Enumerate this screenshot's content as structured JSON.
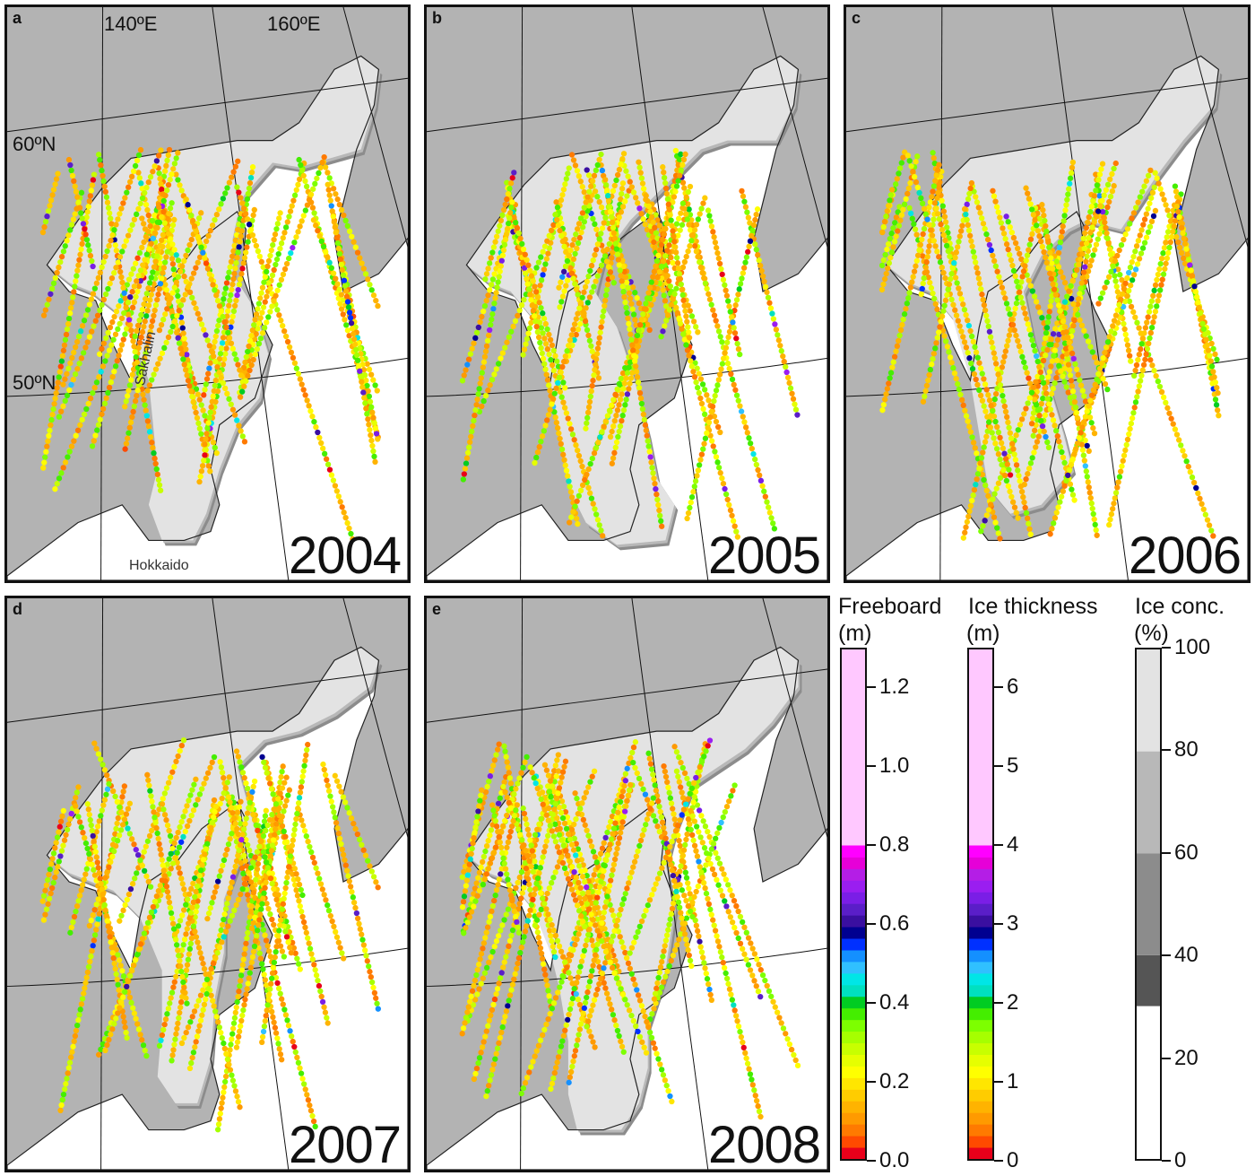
{
  "panels": [
    {
      "id": "a",
      "label": "a",
      "year": "2004"
    },
    {
      "id": "b",
      "label": "b",
      "year": "2005"
    },
    {
      "id": "c",
      "label": "c",
      "year": "2006"
    },
    {
      "id": "d",
      "label": "d",
      "year": "2007"
    },
    {
      "id": "e",
      "label": "e",
      "year": "2008"
    }
  ],
  "axis_labels": {
    "lon_140": "140ºE",
    "lon_160": "160ºE",
    "lat_60": "60ºN",
    "lat_50": "50ºN"
  },
  "places": {
    "sakhalin": "Sakhalin",
    "hokkaido": "Hokkaido"
  },
  "legend": {
    "freeboard": {
      "title": "Freeboard",
      "unit": "(m)",
      "ticks": [
        "0.0",
        "0.2",
        "0.4",
        "0.6",
        "0.8",
        "1.0",
        "1.2"
      ],
      "range": [
        0,
        1.3
      ]
    },
    "thickness": {
      "title": "Ice thickness",
      "unit": "(m)",
      "ticks": [
        "0",
        "1",
        "2",
        "3",
        "4",
        "5",
        "6"
      ],
      "range": [
        0,
        6.5
      ]
    },
    "concentration": {
      "title": "Ice conc.",
      "unit": "(%)",
      "ticks": [
        "0",
        "20",
        "40",
        "60",
        "80",
        "100"
      ],
      "range": [
        0,
        100
      ]
    }
  },
  "colors": {
    "land": "#b3b3b3",
    "ice_high": "#e3e3e3",
    "ice_mid": "#b8b8b8",
    "ice_low": "#8c8c8c",
    "ice_vlow": "#555555",
    "open_water": "#ffffff",
    "thickness_scale": [
      "#e8001a",
      "#ff4a00",
      "#ff7a00",
      "#ff9a00",
      "#ffb300",
      "#ffcc00",
      "#ffe600",
      "#ffff00",
      "#e6ff00",
      "#c8ff00",
      "#a6ff00",
      "#7dff00",
      "#44ee00",
      "#00cc22",
      "#00e0c0",
      "#00e6e6",
      "#30c0ff",
      "#1490ff",
      "#0030ff",
      "#000090",
      "#3a0fa0",
      "#5a1ec8",
      "#7a1ee6",
      "#9a1ef0",
      "#b41ee6",
      "#e600d8",
      "#ff00ff",
      "#ffc8ff"
    ]
  }
}
